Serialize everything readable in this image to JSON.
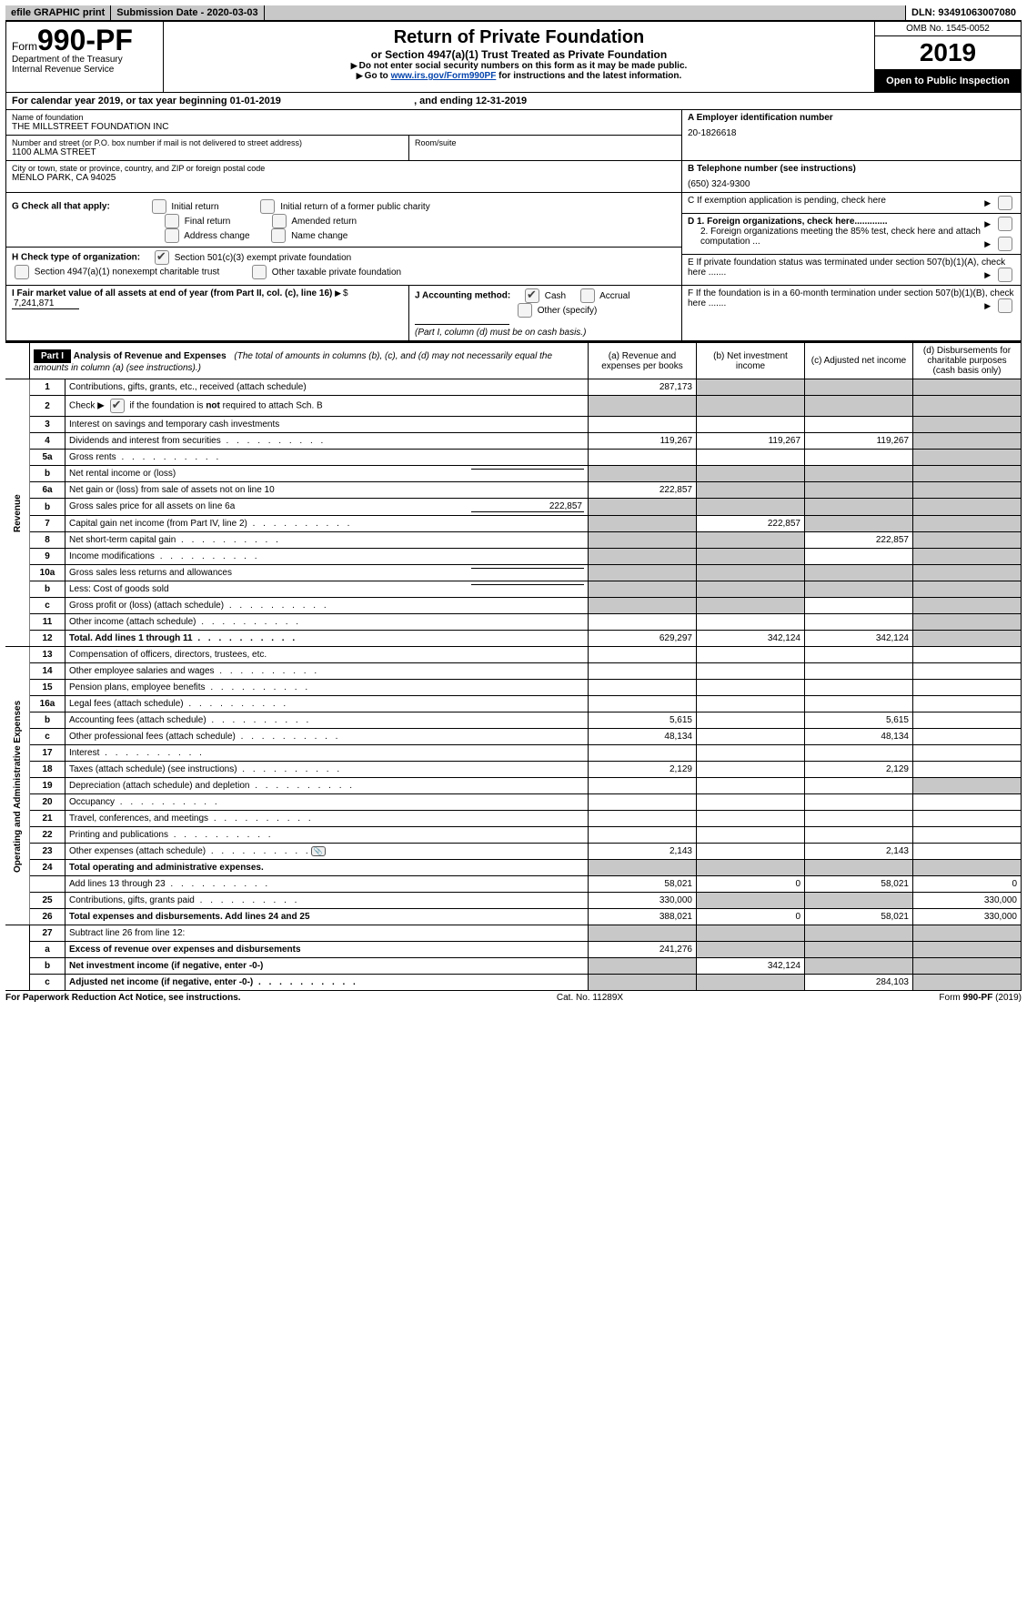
{
  "topbar": {
    "efile": "efile GRAPHIC print",
    "subdate_label": "Submission Date -",
    "subdate": "2020-03-03",
    "dln_label": "DLN:",
    "dln": "93491063007080"
  },
  "header": {
    "form_word": "Form",
    "form_no": "990-PF",
    "dept": "Department of the Treasury",
    "irs": "Internal Revenue Service",
    "title": "Return of Private Foundation",
    "sub1": "or Section 4947(a)(1) Trust Treated as Private Foundation",
    "warn": "Do not enter social security numbers on this form as it may be made public.",
    "goto_pre": "Go to ",
    "goto_link": "www.irs.gov/Form990PF",
    "goto_post": " for instructions and the latest information.",
    "omb": "OMB No. 1545-0052",
    "year": "2019",
    "open": "Open to Public Inspection"
  },
  "cal": {
    "pre": "For calendar year 2019, or tax year beginning ",
    "begin": "01-01-2019",
    "mid": ", and ending ",
    "end": "12-31-2019"
  },
  "id": {
    "name_label": "Name of foundation",
    "name": "THE MILLSTREET FOUNDATION INC",
    "addr_label": "Number and street (or P.O. box number if mail is not delivered to street address)",
    "addr": "1100 ALMA STREET",
    "room_label": "Room/suite",
    "city_label": "City or town, state or province, country, and ZIP or foreign postal code",
    "city": "MENLO PARK, CA  94025",
    "A_label": "A Employer identification number",
    "A": "20-1826618",
    "B_label": "B Telephone number (see instructions)",
    "B": "(650) 324-9300",
    "C": "C  If exemption application is pending, check here",
    "G": "G  Check all that apply:",
    "g1": "Initial return",
    "g2": "Initial return of a former public charity",
    "g3": "Final return",
    "g4": "Amended return",
    "g5": "Address change",
    "g6": "Name change",
    "H": "H Check type of organization:",
    "h1": "Section 501(c)(3) exempt private foundation",
    "h2": "Section 4947(a)(1) nonexempt charitable trust",
    "h3": "Other taxable private foundation",
    "D1": "D 1. Foreign organizations, check here.............",
    "D2": "2. Foreign organizations meeting the 85% test, check here and attach computation ...",
    "E": "E   If private foundation status was terminated under section 507(b)(1)(A), check here .......",
    "F": "F   If the foundation is in a 60-month termination under section 507(b)(1)(B), check here .......",
    "I_label": "I Fair market value of all assets at end of year (from Part II, col. (c), line 16)",
    "I_sym": "$",
    "I": "7,241,871",
    "J": "J Accounting method:",
    "j1": "Cash",
    "j2": "Accrual",
    "j3": "Other (specify)",
    "j_note": "(Part I, column (d) must be on cash basis.)"
  },
  "part1": {
    "tag": "Part I",
    "title": "Analysis of Revenue and Expenses",
    "note": "(The total of amounts in columns (b), (c), and (d) may not necessarily equal the amounts in column (a) (see instructions).)",
    "cols": {
      "a": "(a)   Revenue and expenses per books",
      "b": "(b)   Net investment income",
      "c": "(c)   Adjusted net income",
      "d": "(d)   Disbursements for charitable purposes (cash basis only)"
    },
    "sides": {
      "rev": "Revenue",
      "exp": "Operating and Administrative Expenses"
    },
    "rows": [
      {
        "n": "1",
        "t": "Contributions, gifts, grants, etc., received (attach schedule)",
        "a": "287,173",
        "bg": "b,c,d"
      },
      {
        "n": "2",
        "t": "Check ▶ [x] if the foundation is not required to attach Sch. B",
        "dots": 1,
        "bg": "a,b,c,d",
        "check": true
      },
      {
        "n": "3",
        "t": "Interest on savings and temporary cash investments",
        "bg": "d"
      },
      {
        "n": "4",
        "t": "Dividends and interest from securities",
        "dots": 1,
        "a": "119,267",
        "b": "119,267",
        "c": "119,267",
        "bg": "d"
      },
      {
        "n": "5a",
        "t": "Gross rents",
        "dots": 1,
        "bg": "d"
      },
      {
        "n": "b",
        "t": "Net rental income or (loss)",
        "inline": " ",
        "bg": "a,b,c,d"
      },
      {
        "n": "6a",
        "t": "Net gain or (loss) from sale of assets not on line 10",
        "a": "222,857",
        "bg": "b,c,d"
      },
      {
        "n": "b",
        "t": "Gross sales price for all assets on line 6a",
        "inline": "222,857",
        "bg": "a,b,c,d"
      },
      {
        "n": "7",
        "t": "Capital gain net income (from Part IV, line 2)",
        "dots": 1,
        "b": "222,857",
        "bg": "a,c,d"
      },
      {
        "n": "8",
        "t": "Net short-term capital gain",
        "dots": 1,
        "c": "222,857",
        "bg": "a,b,d"
      },
      {
        "n": "9",
        "t": "Income modifications",
        "dots": 1,
        "bg": "a,b,d"
      },
      {
        "n": "10a",
        "t": "Gross sales less returns and allowances",
        "inline": " ",
        "bg": "a,b,c,d"
      },
      {
        "n": "b",
        "t": "Less: Cost of goods sold",
        "dots": 1,
        "inline": " ",
        "bg": "a,b,c,d"
      },
      {
        "n": "c",
        "t": "Gross profit or (loss) (attach schedule)",
        "dots": 1,
        "bg": "a,b,d"
      },
      {
        "n": "11",
        "t": "Other income (attach schedule)",
        "dots": 1,
        "bg": "d"
      },
      {
        "n": "12",
        "t": "Total. Add lines 1 through 11",
        "dots": 1,
        "bold": 1,
        "a": "629,297",
        "b": "342,124",
        "c": "342,124",
        "bg": "d"
      },
      {
        "n": "13",
        "t": "Compensation of officers, directors, trustees, etc.",
        "sec": "exp"
      },
      {
        "n": "14",
        "t": "Other employee salaries and wages",
        "dots": 1
      },
      {
        "n": "15",
        "t": "Pension plans, employee benefits",
        "dots": 1
      },
      {
        "n": "16a",
        "t": "Legal fees (attach schedule)",
        "dots": 1
      },
      {
        "n": "b",
        "t": "Accounting fees (attach schedule)",
        "dots": 1,
        "a": "5,615",
        "c": "5,615"
      },
      {
        "n": "c",
        "t": "Other professional fees (attach schedule)",
        "dots": 1,
        "a": "48,134",
        "c": "48,134"
      },
      {
        "n": "17",
        "t": "Interest",
        "dots": 1
      },
      {
        "n": "18",
        "t": "Taxes (attach schedule) (see instructions)",
        "dots": 1,
        "a": "2,129",
        "c": "2,129"
      },
      {
        "n": "19",
        "t": "Depreciation (attach schedule) and depletion",
        "dots": 1,
        "bg": "d"
      },
      {
        "n": "20",
        "t": "Occupancy",
        "dots": 1
      },
      {
        "n": "21",
        "t": "Travel, conferences, and meetings",
        "dots": 1
      },
      {
        "n": "22",
        "t": "Printing and publications",
        "dots": 1
      },
      {
        "n": "23",
        "t": "Other expenses (attach schedule)",
        "dots": 1,
        "a": "2,143",
        "c": "2,143",
        "icon": 1
      },
      {
        "n": "24",
        "t": "Total operating and administrative expenses.",
        "bold": 1,
        "bg": "a,b,c,d"
      },
      {
        "n": "",
        "t": "Add lines 13 through 23",
        "dots": 1,
        "a": "58,021",
        "b": "0",
        "c": "58,021",
        "d": "0"
      },
      {
        "n": "25",
        "t": "Contributions, gifts, grants paid",
        "dots": 1,
        "a": "330,000",
        "d": "330,000",
        "bg": "b,c"
      },
      {
        "n": "26",
        "t": "Total expenses and disbursements. Add lines 24 and 25",
        "bold": 1,
        "a": "388,021",
        "b": "0",
        "c": "58,021",
        "d": "330,000"
      },
      {
        "n": "27",
        "t": "Subtract line 26 from line 12:",
        "sec": "end",
        "bg": "a,b,c,d"
      },
      {
        "n": "a",
        "t": "Excess of revenue over expenses and disbursements",
        "bold": 1,
        "a": "241,276",
        "bg": "b,c,d"
      },
      {
        "n": "b",
        "t": "Net investment income (if negative, enter -0-)",
        "bold": 1,
        "b": "342,124",
        "bg": "a,c,d"
      },
      {
        "n": "c",
        "t": "Adjusted net income (if negative, enter -0-)",
        "bold": 1,
        "dots": 1,
        "c": "284,103",
        "bg": "a,b,d"
      }
    ]
  },
  "footer": {
    "left": "For Paperwork Reduction Act Notice, see instructions.",
    "mid": "Cat. No. 11289X",
    "right": "Form 990-PF (2019)"
  }
}
